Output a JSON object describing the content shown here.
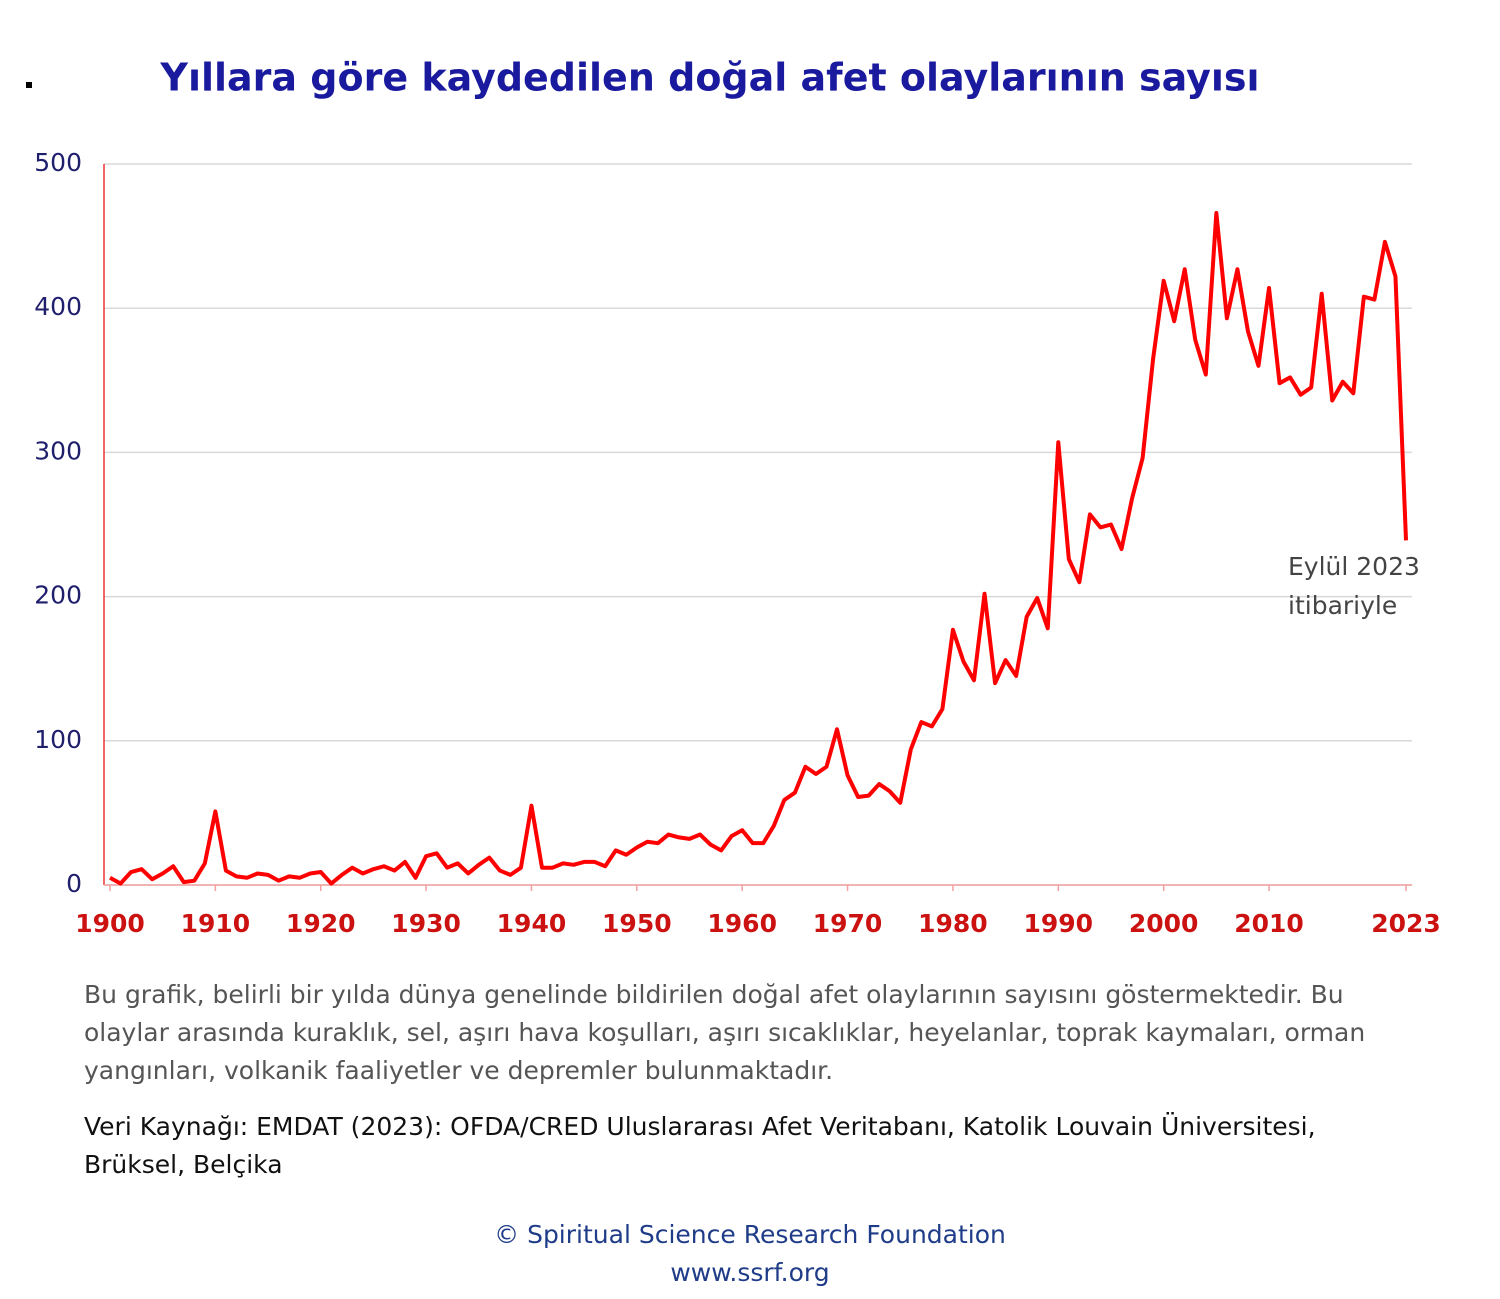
{
  "chart_data": {
    "type": "line",
    "title": "Yıllara göre kaydedilen doğal afet olaylarının sayısı",
    "x": [
      1900,
      1901,
      1902,
      1903,
      1904,
      1905,
      1906,
      1907,
      1908,
      1909,
      1910,
      1911,
      1912,
      1913,
      1914,
      1915,
      1916,
      1917,
      1918,
      1919,
      1920,
      1921,
      1922,
      1923,
      1924,
      1925,
      1926,
      1927,
      1928,
      1929,
      1930,
      1931,
      1932,
      1933,
      1934,
      1935,
      1936,
      1937,
      1938,
      1939,
      1940,
      1941,
      1942,
      1943,
      1944,
      1945,
      1946,
      1947,
      1948,
      1949,
      1950,
      1951,
      1952,
      1953,
      1954,
      1955,
      1956,
      1957,
      1958,
      1959,
      1960,
      1961,
      1962,
      1963,
      1964,
      1965,
      1966,
      1967,
      1968,
      1969,
      1970,
      1971,
      1972,
      1973,
      1974,
      1975,
      1976,
      1977,
      1978,
      1979,
      1980,
      1981,
      1982,
      1983,
      1984,
      1985,
      1986,
      1987,
      1988,
      1989,
      1990,
      1991,
      1992,
      1993,
      1994,
      1995,
      1996,
      1997,
      1998,
      1999,
      2000,
      2001,
      2002,
      2003,
      2004,
      2005,
      2006,
      2007,
      2008,
      2009,
      2010,
      2011,
      2012,
      2013,
      2014,
      2015,
      2016,
      2017,
      2018,
      2019,
      2020,
      2021,
      2022,
      2023
    ],
    "series": [
      {
        "color": "#ff0000",
        "values": [
          5,
          1,
          9,
          11,
          4,
          8,
          13,
          2,
          3,
          15,
          51,
          10,
          6,
          5,
          8,
          7,
          3,
          6,
          5,
          8,
          9,
          1,
          7,
          12,
          8,
          11,
          13,
          10,
          16,
          5,
          20,
          22,
          12,
          15,
          8,
          14,
          19,
          10,
          7,
          12,
          55,
          12,
          12,
          15,
          14,
          16,
          16,
          13,
          24,
          21,
          26,
          30,
          29,
          35,
          33,
          32,
          35,
          28,
          24,
          34,
          38,
          29,
          29,
          41,
          59,
          64,
          82,
          77,
          82,
          108,
          76,
          61,
          62,
          70,
          65,
          57,
          94,
          113,
          110,
          122,
          177,
          155,
          142,
          202,
          140,
          156,
          145,
          186,
          199,
          178,
          307,
          226,
          210,
          257,
          248,
          250,
          233,
          268,
          296,
          365,
          419,
          391,
          427,
          378,
          354,
          466,
          393,
          427,
          384,
          360,
          414,
          348,
          352,
          340,
          345,
          410,
          336,
          349,
          341,
          408,
          406,
          446,
          422,
          239
        ]
      }
    ],
    "xlim": [
      1900,
      2023
    ],
    "xticks": [
      1900,
      1910,
      1920,
      1930,
      1940,
      1950,
      1960,
      1970,
      1980,
      1990,
      2000,
      2010,
      2023
    ],
    "ylim": [
      0,
      500
    ],
    "yticks": [
      0,
      100,
      200,
      300,
      400,
      500
    ],
    "grid": true,
    "annotation": [
      "Eylül 2023",
      "itibariyle"
    ]
  },
  "description": "Bu grafik, belirli bir yılda dünya genelinde bildirilen doğal afet olaylarının sayısını göstermektedir. Bu olaylar arasında kuraklık, sel, aşırı hava koşulları, aşırı sıcaklıklar, heyelanlar, toprak kaymaları, orman yangınları, volkanik faaliyetler ve depremler bulunmaktadır.",
  "source": "Veri Kaynağı: EMDAT (2023): OFDA/CRED Uluslararası Afet Veritabanı, Katolik Louvain Üniversitesi, Brüksel, Belçika",
  "copyright": "© Spiritual Science Research Foundation",
  "url": "www.ssrf.org"
}
